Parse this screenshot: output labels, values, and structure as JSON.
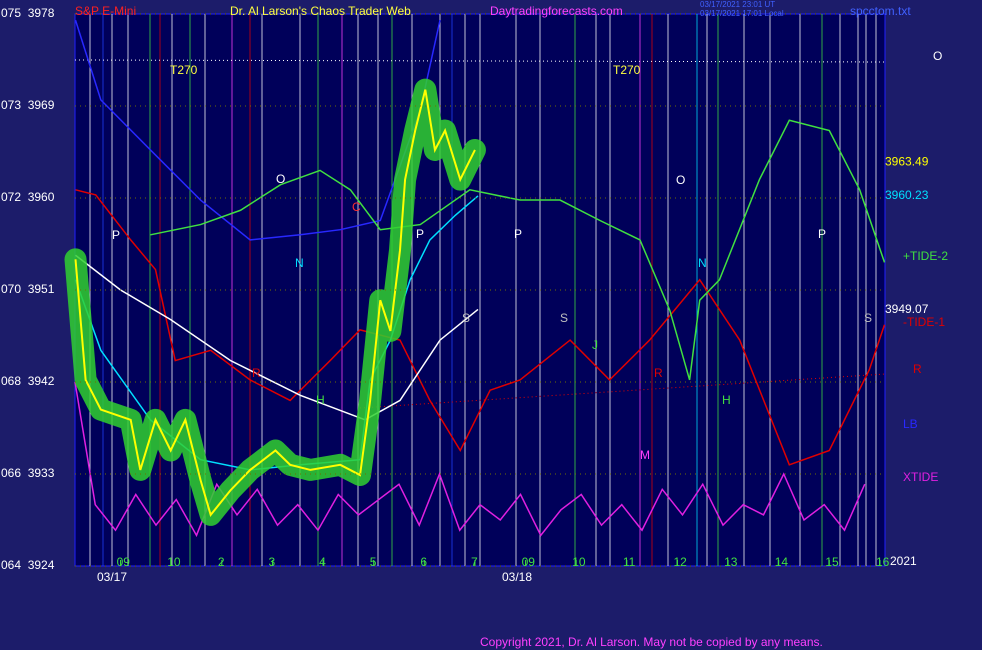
{
  "header": {
    "instrument": "S&P E-Mini",
    "title": "Dr. Al Larson's Chaos Trader Web",
    "site": "Daytradingforecasts.com",
    "timestamp_1": "03/17/2021 23:01 UT",
    "timestamp_2": "03/17/2021 17:01 Local",
    "file": "spcctom.txt"
  },
  "footer": "Copyright 2021, Dr. Al Larson. May not be copied by any means.",
  "annotations": [
    "T270",
    "T270",
    "O",
    "O",
    "P",
    "P",
    "P",
    "P",
    "N",
    "N",
    "C",
    "S",
    "S",
    "S",
    "R",
    "R",
    "H",
    "H",
    "J",
    "M",
    "O",
    "R",
    "2021",
    "03/17",
    "03/18"
  ],
  "chart_data": {
    "type": "line",
    "xlim": [
      -0.9,
      15.1
    ],
    "ylim": [
      3924,
      3978
    ],
    "xticks": [
      {
        "value": 0,
        "label": "09"
      },
      {
        "value": 1,
        "label": "10"
      },
      2,
      3,
      4,
      5,
      6,
      7,
      {
        "value": 8,
        "label": "09"
      },
      {
        "value": 9,
        "label": "10"
      },
      {
        "value": 10,
        "label": "11"
      },
      {
        "value": 11,
        "label": "12"
      },
      {
        "value": 12,
        "label": "13"
      },
      {
        "value": 13,
        "label": "14"
      },
      {
        "value": 14,
        "label": "15"
      },
      {
        "value": 15,
        "label": "16"
      }
    ],
    "yticks": [
      {
        "value": 3978,
        "label": "075  3978"
      },
      {
        "value": 3969,
        "label": "073  3969"
      },
      {
        "value": 3960,
        "label": "072  3960"
      },
      {
        "value": 3951,
        "label": "070  3951"
      },
      {
        "value": 3942,
        "label": "068  3942"
      },
      {
        "value": 3933,
        "label": "066  3933"
      },
      {
        "value": 3924,
        "label": "064  3924"
      }
    ],
    "grid": true,
    "series": [
      {
        "name": "XTIDE",
        "color": "#e020e0",
        "x": [
          -0.9,
          -0.5,
          -0.1,
          0.3,
          0.7,
          1.1,
          1.5,
          1.9,
          2.3,
          2.7,
          3.1,
          3.5,
          3.9,
          4.3,
          4.7,
          5.1,
          5.5,
          5.9,
          6.3,
          6.7,
          7.1,
          7.5,
          7.9,
          8.3,
          8.7,
          9.1,
          9.5,
          9.9,
          10.3,
          10.7,
          11.1,
          11.5,
          11.9,
          12.3,
          12.7,
          13.1,
          13.5,
          13.9,
          14.3,
          14.7
        ],
        "values": [
          3942,
          3930,
          3927.5,
          3931,
          3928,
          3930.5,
          3927,
          3932,
          3929,
          3931.5,
          3928,
          3930,
          3927.5,
          3931,
          3929,
          3930.5,
          3932,
          3928,
          3933,
          3927.5,
          3930,
          3928.5,
          3931,
          3927,
          3929.5,
          3931,
          3928,
          3930,
          3927.5,
          3931.5,
          3929,
          3932,
          3928,
          3930,
          3929,
          3933,
          3928.5,
          3930,
          3927.5,
          3932
        ]
      },
      {
        "name": "LB",
        "color": "#2828ff",
        "x": [
          -0.89,
          -0.39,
          0.59,
          1.58,
          2.56,
          3.55,
          4.34,
          5.13,
          5.92,
          6.31
        ],
        "values": [
          3977.4,
          3969.6,
          3964.7,
          3959.8,
          3955.9,
          3956.4,
          3956.9,
          3957.8,
          3968.6,
          3977.4
        ]
      },
      {
        "name": "-TIDE-1",
        "color": "#e00000",
        "x": [
          -0.89,
          -0.49,
          0.2,
          0.69,
          1.08,
          1.78,
          2.56,
          3.35,
          4.14,
          4.73,
          5.52,
          6.11,
          6.71,
          7.3,
          7.89,
          8.88,
          9.66,
          10.45,
          11.44,
          12.23,
          13.21,
          14.0,
          14.79,
          15.09
        ],
        "values": [
          3960.8,
          3960.3,
          3955.9,
          3953.0,
          3944.1,
          3945.1,
          3942.2,
          3940.2,
          3944.1,
          3947.1,
          3946.1,
          3940.2,
          3935.3,
          3941.2,
          3942.2,
          3946.1,
          3942.2,
          3946.1,
          3952.0,
          3946.1,
          3933.9,
          3935.3,
          3943.2,
          3947.6
        ]
      },
      {
        "name": "+TIDE-2",
        "color": "#40e040",
        "x": [
          0.59,
          1.58,
          2.37,
          3.16,
          3.94,
          4.54,
          5.13,
          5.92,
          6.9,
          7.89,
          8.68,
          9.47,
          10.26,
          10.85,
          11.24,
          11.44,
          11.83,
          12.62,
          13.21,
          14.0,
          14.6,
          15.09
        ],
        "values": [
          3956.4,
          3957.4,
          3958.8,
          3961.3,
          3962.7,
          3960.8,
          3956.9,
          3957.4,
          3960.8,
          3959.8,
          3959.8,
          3957.8,
          3955.9,
          3949.0,
          3942.2,
          3950.0,
          3952.0,
          3961.8,
          3967.6,
          3966.6,
          3960.8,
          3953.7
        ]
      },
      {
        "color": "#ffffff",
        "label_value": 3949.07,
        "x": [
          -0.89,
          0,
          0.99,
          2.17,
          3.55,
          4.83,
          5.52,
          6.31,
          7.06
        ],
        "values": [
          3954.4,
          3951.0,
          3948.1,
          3944.1,
          3940.7,
          3938.3,
          3940.2,
          3946.1,
          3949.1
        ]
      },
      {
        "color": "#00e0ff",
        "label_value": 3960.23,
        "x": [
          -0.89,
          -0.39,
          0.59,
          1.58,
          2.56,
          3.55,
          4.73,
          4.93,
          5.33,
          5.72,
          6.11,
          6.61,
          7.06
        ],
        "values": [
          3952.0,
          3945.1,
          3938.3,
          3934.4,
          3933.4,
          3933.9,
          3934.4,
          3942.2,
          3946.1,
          3952.0,
          3955.9,
          3958.3,
          3960.2
        ]
      },
      {
        "color": "#ffff00",
        "label_value": 3963.49,
        "glow": "#30d030",
        "x": [
          -0.89,
          -0.69,
          -0.39,
          0.2,
          0.39,
          0.69,
          0.99,
          1.28,
          1.58,
          1.78,
          2.17,
          2.56,
          3.06,
          3.35,
          3.75,
          4.34,
          4.73,
          4.93,
          5.13,
          5.33,
          5.52,
          5.62,
          5.82,
          6.02,
          6.21,
          6.41,
          6.71,
          7.0
        ],
        "values": [
          3954.0,
          3942.2,
          3939.3,
          3938.3,
          3933.4,
          3938.3,
          3935.3,
          3938.3,
          3932.4,
          3929.0,
          3931.4,
          3933.4,
          3935.3,
          3933.9,
          3933.4,
          3933.9,
          3932.9,
          3940.2,
          3950.0,
          3947.0,
          3954.9,
          3961.8,
          3966.6,
          3970.6,
          3964.7,
          3966.6,
          3961.8,
          3964.7
        ]
      }
    ]
  }
}
